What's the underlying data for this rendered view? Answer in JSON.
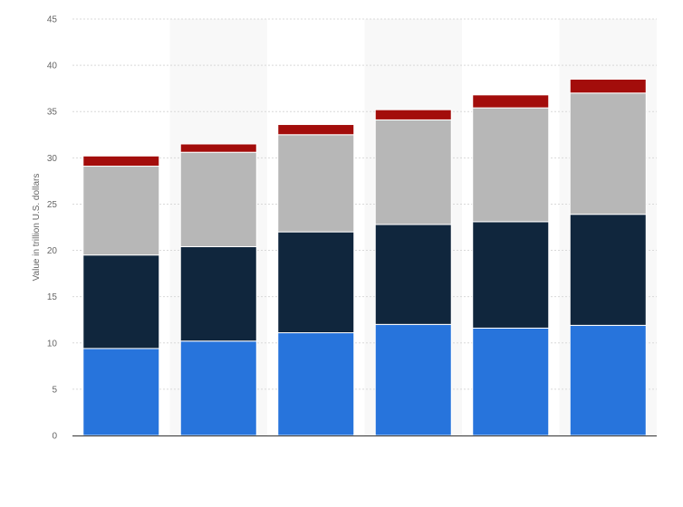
{
  "chart_data": {
    "type": "bar",
    "stacked": true,
    "categories": [
      "",
      "",
      "",
      "",
      "",
      ""
    ],
    "series": [
      {
        "values": [
          9.4,
          10.2,
          11.1,
          12.0,
          11.6,
          11.9
        ],
        "color": "#2774dc"
      },
      {
        "values": [
          10.1,
          10.2,
          10.9,
          10.8,
          11.5,
          12.0
        ],
        "color": "#10263d"
      },
      {
        "values": [
          9.6,
          10.2,
          10.5,
          11.3,
          12.3,
          13.1
        ],
        "color": "#b7b7b7"
      },
      {
        "values": [
          1.1,
          0.9,
          1.1,
          1.1,
          1.4,
          1.5
        ],
        "color": "#a30d0b"
      }
    ],
    "ylim": [
      0,
      45
    ],
    "yticks": [
      "0",
      "5",
      "10",
      "15",
      "20",
      "25",
      "30",
      "35",
      "40",
      "45"
    ],
    "ylabel": "Value in trillion U.S. dollars",
    "xlabel": "",
    "grid": true,
    "alternating_band_color": "#f8f8f8",
    "gridline_color": "#d9d9d9",
    "axis_color": "#333333"
  }
}
